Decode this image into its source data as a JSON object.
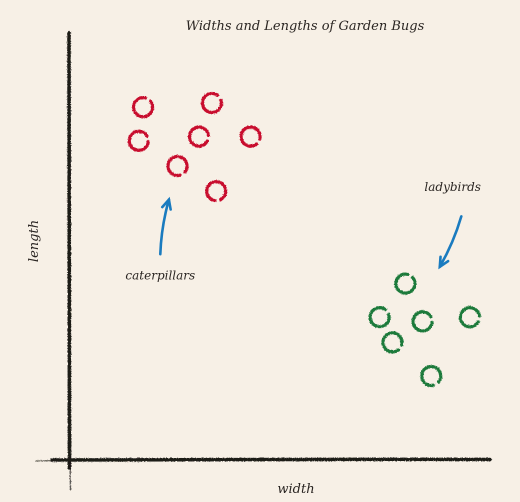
{
  "chart_data": {
    "type": "scatter",
    "title": "Widths and Lengths of Garden Bugs",
    "xlabel": "width",
    "ylabel": "length",
    "xlim": [
      0,
      100
    ],
    "ylim": [
      0,
      100
    ],
    "grid": false,
    "series": [
      {
        "name": "caterpillars",
        "color": "#c8102e",
        "points": [
          {
            "x": 17,
            "y": 84
          },
          {
            "x": 33,
            "y": 85
          },
          {
            "x": 16,
            "y": 76
          },
          {
            "x": 30,
            "y": 77
          },
          {
            "x": 42,
            "y": 77
          },
          {
            "x": 25,
            "y": 70
          },
          {
            "x": 34,
            "y": 64
          }
        ]
      },
      {
        "name": "ladybirds",
        "color": "#1f7a3a",
        "points": [
          {
            "x": 78,
            "y": 42
          },
          {
            "x": 72,
            "y": 34
          },
          {
            "x": 82,
            "y": 33
          },
          {
            "x": 93,
            "y": 34
          },
          {
            "x": 75,
            "y": 28
          },
          {
            "x": 84,
            "y": 20
          }
        ]
      }
    ],
    "arrow_color": "#1a7bbf",
    "annotations": [
      {
        "id": "caterpillars",
        "text": "caterpillars",
        "label_at": {
          "x": 21,
          "y": 43
        },
        "arrow_from": {
          "x": 21,
          "y": 49
        },
        "arrow_to": {
          "x": 23,
          "y": 62
        }
      },
      {
        "id": "ladybirds",
        "text": "ladybirds",
        "label_at": {
          "x": 89,
          "y": 64
        },
        "arrow_from": {
          "x": 91,
          "y": 58
        },
        "arrow_to": {
          "x": 86,
          "y": 46
        }
      }
    ]
  }
}
